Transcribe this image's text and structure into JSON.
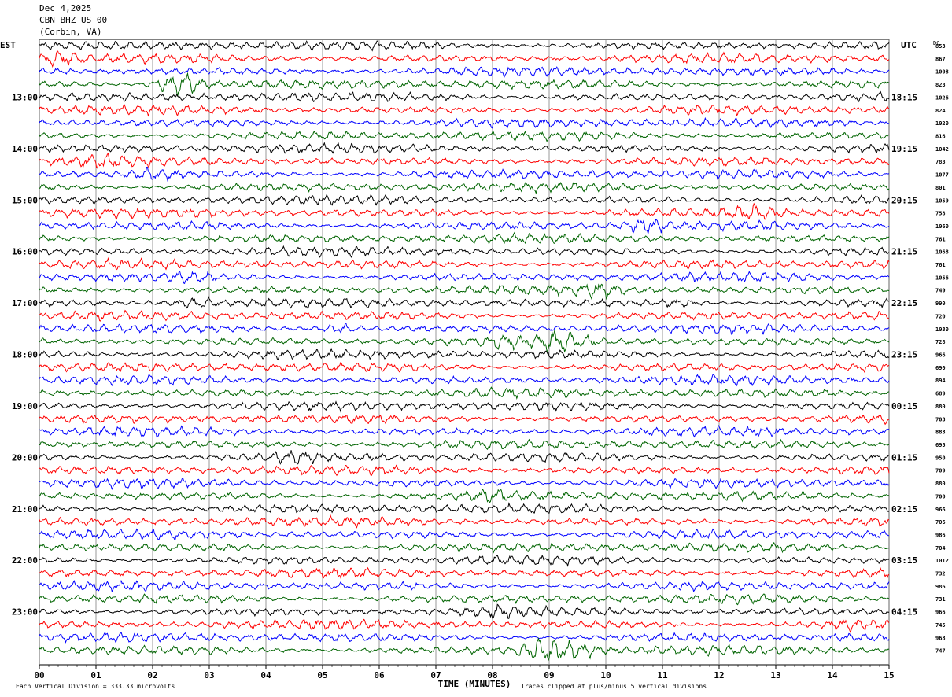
{
  "header": {
    "date": "Dec 4,2025",
    "station": "CBN BHZ US 00",
    "location": "(Corbin, VA)"
  },
  "chart_data": {
    "type": "line",
    "title": "",
    "left_tz": "EST",
    "right_tz": "UTC",
    "dc_label": "DC",
    "xlabel": "TIME (MINUTES)",
    "xlim": [
      0,
      15
    ],
    "x_ticks": [
      "00",
      "01",
      "02",
      "03",
      "04",
      "05",
      "06",
      "07",
      "08",
      "09",
      "10",
      "11",
      "12",
      "13",
      "14",
      "15"
    ],
    "left_hour_labels": [
      "13:00",
      "14:00",
      "15:00",
      "16:00",
      "17:00",
      "18:00",
      "19:00",
      "20:00",
      "21:00",
      "22:00",
      "23:00"
    ],
    "right_hour_labels": [
      "18:15",
      "19:15",
      "20:15",
      "21:15",
      "22:15",
      "23:15",
      "00:15",
      "01:15",
      "02:15",
      "03:15",
      "04:15"
    ],
    "trace_colors": [
      "#000000",
      "#ff0000",
      "#0000ff",
      "#006400"
    ],
    "dc_offsets": [
      "853",
      "867",
      "1008",
      "823",
      "1026",
      "824",
      "1020",
      "816",
      "1042",
      "783",
      "1077",
      "801",
      "1059",
      "758",
      "1060",
      "761",
      "1068",
      "761",
      "1056",
      "749",
      "990",
      "720",
      "1030",
      "728",
      "966",
      "690",
      "894",
      "689",
      "880",
      "703",
      "883",
      "695",
      "950",
      "709",
      "880",
      "700",
      "966",
      "706",
      "986",
      "704",
      "1012",
      "732",
      "986",
      "731",
      "966",
      "745",
      "968",
      "747"
    ],
    "bursts": [
      {
        "row": 1,
        "minute": 0.3,
        "amplitude": 2.2
      },
      {
        "row": 3,
        "minute": 2.6,
        "amplitude": 2.6
      },
      {
        "row": 3,
        "minute": 2.3,
        "amplitude": 2.0
      },
      {
        "row": 9,
        "minute": 1.1,
        "amplitude": 1.8
      },
      {
        "row": 10,
        "minute": 2.0,
        "amplitude": 1.8
      },
      {
        "row": 13,
        "minute": 12.6,
        "amplitude": 2.0
      },
      {
        "row": 14,
        "minute": 10.7,
        "amplitude": 2.2
      },
      {
        "row": 18,
        "minute": 2.6,
        "amplitude": 1.6
      },
      {
        "row": 19,
        "minute": 9.9,
        "amplitude": 2.2
      },
      {
        "row": 20,
        "minute": 11.3,
        "amplitude": 1.6
      },
      {
        "row": 20,
        "minute": 2.8,
        "amplitude": 1.8
      },
      {
        "row": 22,
        "minute": 5.3,
        "amplitude": 1.8
      },
      {
        "row": 23,
        "minute": 9.2,
        "amplitude": 2.8
      },
      {
        "row": 23,
        "minute": 8.2,
        "amplitude": 1.6
      },
      {
        "row": 32,
        "minute": 4.5,
        "amplitude": 1.8
      },
      {
        "row": 35,
        "minute": 8.0,
        "amplitude": 1.6
      },
      {
        "row": 44,
        "minute": 8.1,
        "amplitude": 1.6
      },
      {
        "row": 45,
        "minute": 14.3,
        "amplitude": 1.6
      },
      {
        "row": 47,
        "minute": 8.9,
        "amplitude": 3.4
      },
      {
        "row": 47,
        "minute": 9.5,
        "amplitude": 2.4
      }
    ]
  },
  "footer": {
    "scale_note": "Each Vertical Division =  333.33 microvolts",
    "clip_note": "Traces clipped at plus/minus 5 vertical divisions"
  }
}
